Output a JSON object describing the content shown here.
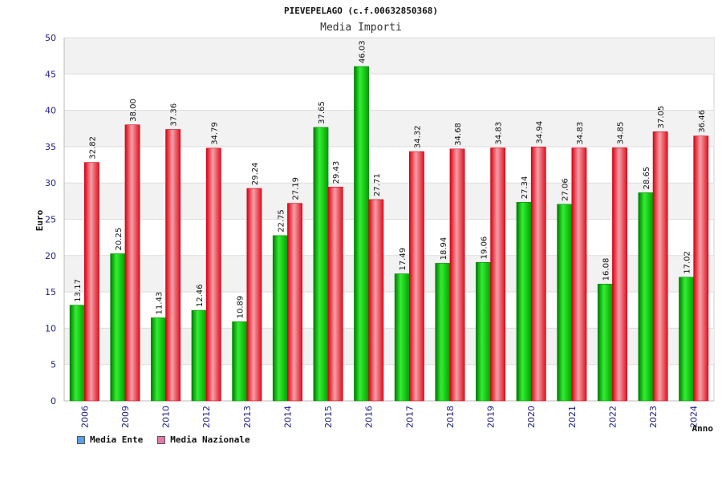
{
  "chart_data": {
    "type": "bar",
    "title": "PIEVEPELAGO (c.f.00632850368)",
    "subtitle": "Media Importi",
    "xlabel": "Anno",
    "ylabel": "Euro",
    "ylim": [
      0,
      50
    ],
    "yticks": [
      0,
      5,
      10,
      15,
      20,
      25,
      30,
      35,
      40,
      45,
      50
    ],
    "grid": true,
    "legend_position": "bottom-left",
    "categories": [
      "2006",
      "2009",
      "2010",
      "2012",
      "2013",
      "2014",
      "2015",
      "2016",
      "2017",
      "2018",
      "2019",
      "2020",
      "2021",
      "2022",
      "2023",
      "2024"
    ],
    "series": [
      {
        "name": "Media Ente",
        "color": "#00bb00",
        "legend_color": "#5aa0e6",
        "values": [
          13.17,
          20.25,
          11.43,
          12.46,
          10.89,
          22.75,
          37.65,
          46.03,
          17.49,
          18.94,
          19.06,
          27.34,
          27.06,
          16.08,
          28.65,
          17.02
        ],
        "labels": [
          "13.17",
          "20.25",
          "11.43",
          "12.46",
          "10.89",
          "22.75",
          "37.65",
          "46.03",
          "17.49",
          "18.94",
          "19.06",
          "27.34",
          "27.06",
          "16.08",
          "28.65",
          "17.02"
        ]
      },
      {
        "name": "Media Nazionale",
        "color": "#ee2233",
        "legend_color": "#e07aa8",
        "values": [
          32.82,
          38.0,
          37.36,
          34.79,
          29.24,
          27.19,
          29.43,
          27.71,
          34.32,
          34.68,
          34.83,
          34.94,
          34.83,
          34.85,
          37.05,
          36.46
        ],
        "labels": [
          "32.82",
          "38.00",
          "37.36",
          "34.79",
          "29.24",
          "27.19",
          "29.43",
          "27.71",
          "34.32",
          "34.68",
          "34.83",
          "34.94",
          "34.83",
          "34.85",
          "37.05",
          "36.46"
        ]
      }
    ]
  }
}
